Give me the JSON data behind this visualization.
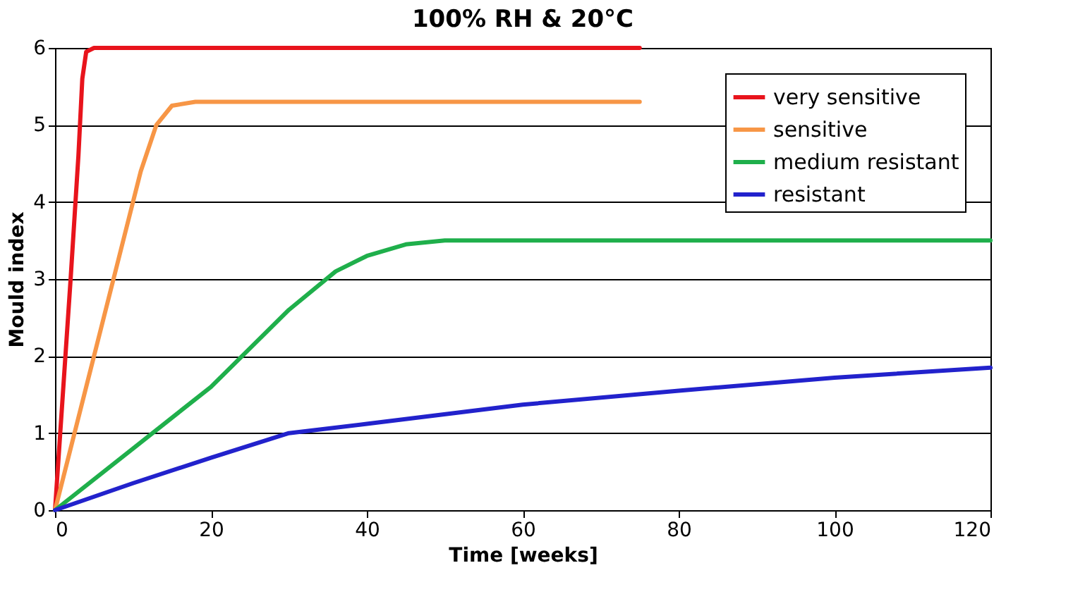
{
  "chart_data": {
    "type": "line",
    "title": "100% RH & 20°C",
    "xlabel": "Time [weeks]",
    "ylabel": "Mould index",
    "xlim": [
      0,
      120
    ],
    "xticks": [
      0,
      20,
      40,
      60,
      80,
      100,
      120
    ],
    "ylim": [
      0,
      6
    ],
    "yticks": [
      0,
      1,
      2,
      3,
      4,
      5,
      6
    ],
    "grid": "y",
    "legend": "top right",
    "series": [
      {
        "name": "very sensitive",
        "color": "#e8141c",
        "x": [
          0,
          1,
          2,
          3,
          3.5,
          4,
          5,
          20,
          40,
          60,
          75
        ],
        "values": [
          0,
          1.5,
          3,
          4.6,
          5.6,
          5.95,
          6,
          6,
          6,
          6,
          6
        ]
      },
      {
        "name": "sensitive",
        "color": "#f79646",
        "x": [
          0,
          4,
          8,
          11,
          13,
          15,
          18,
          40,
          60,
          75
        ],
        "values": [
          0,
          1.6,
          3.2,
          4.4,
          5,
          5.25,
          5.3,
          5.3,
          5.3,
          5.3
        ]
      },
      {
        "name": "medium resistant",
        "color": "#1faf4b",
        "x": [
          0,
          10,
          20,
          30,
          36,
          40,
          45,
          50,
          80,
          120
        ],
        "values": [
          0,
          0.8,
          1.6,
          2.6,
          3.1,
          3.3,
          3.45,
          3.5,
          3.5,
          3.5
        ]
      },
      {
        "name": "resistant",
        "color": "#2222cc",
        "x": [
          0,
          10,
          20,
          30,
          40,
          60,
          80,
          100,
          120
        ],
        "values": [
          0,
          0.35,
          0.68,
          1,
          1.12,
          1.37,
          1.55,
          1.72,
          1.85
        ]
      }
    ]
  }
}
